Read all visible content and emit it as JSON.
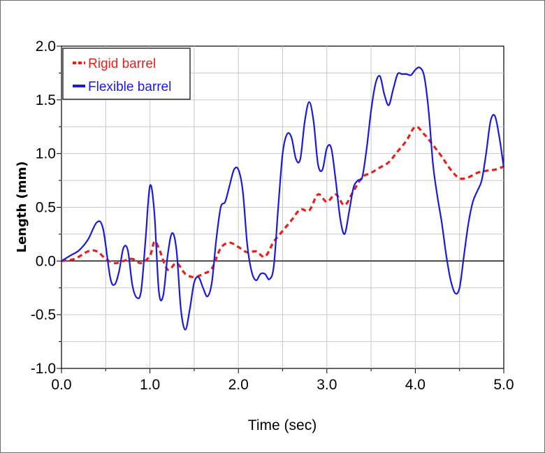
{
  "chart_data": {
    "type": "line",
    "xlabel": "Time (sec)",
    "ylabel": "Length (mm)",
    "xlim": [
      0.0,
      5.0
    ],
    "ylim": [
      -1.0,
      2.0
    ],
    "x_ticks": [
      "0.0",
      "1.0",
      "2.0",
      "3.0",
      "4.0",
      "5.0"
    ],
    "y_ticks": [
      "2.0",
      "1.5",
      "1.0",
      "0.5",
      "0.0",
      "-0.5",
      "-1.0"
    ],
    "grid": true,
    "legend_position": "top-left",
    "series": [
      {
        "name": "Rigid barrel",
        "color": "#e8201c",
        "style": "dashed",
        "points": [
          [
            0.0,
            0.0
          ],
          [
            0.15,
            0.02
          ],
          [
            0.3,
            0.09
          ],
          [
            0.4,
            0.09
          ],
          [
            0.5,
            0.02
          ],
          [
            0.6,
            -0.02
          ],
          [
            0.7,
            0.0
          ],
          [
            0.8,
            0.02
          ],
          [
            0.9,
            -0.02
          ],
          [
            1.0,
            0.05
          ],
          [
            1.05,
            0.18
          ],
          [
            1.1,
            0.12
          ],
          [
            1.2,
            -0.08
          ],
          [
            1.3,
            -0.02
          ],
          [
            1.4,
            -0.12
          ],
          [
            1.5,
            -0.15
          ],
          [
            1.6,
            -0.12
          ],
          [
            1.7,
            -0.07
          ],
          [
            1.8,
            0.12
          ],
          [
            1.9,
            0.17
          ],
          [
            2.0,
            0.13
          ],
          [
            2.1,
            0.08
          ],
          [
            2.2,
            0.09
          ],
          [
            2.3,
            0.04
          ],
          [
            2.4,
            0.18
          ],
          [
            2.5,
            0.28
          ],
          [
            2.6,
            0.38
          ],
          [
            2.7,
            0.48
          ],
          [
            2.8,
            0.47
          ],
          [
            2.9,
            0.62
          ],
          [
            3.0,
            0.55
          ],
          [
            3.1,
            0.62
          ],
          [
            3.2,
            0.52
          ],
          [
            3.3,
            0.65
          ],
          [
            3.4,
            0.78
          ],
          [
            3.5,
            0.82
          ],
          [
            3.6,
            0.87
          ],
          [
            3.7,
            0.92
          ],
          [
            3.8,
            1.02
          ],
          [
            3.9,
            1.12
          ],
          [
            4.0,
            1.25
          ],
          [
            4.1,
            1.18
          ],
          [
            4.2,
            1.08
          ],
          [
            4.3,
            0.97
          ],
          [
            4.4,
            0.85
          ],
          [
            4.5,
            0.77
          ],
          [
            4.6,
            0.78
          ],
          [
            4.7,
            0.82
          ],
          [
            4.8,
            0.84
          ],
          [
            4.9,
            0.85
          ],
          [
            5.0,
            0.88
          ]
        ]
      },
      {
        "name": "Flexible barrel",
        "color": "#1a1adc",
        "style": "solid",
        "points": [
          [
            0.0,
            0.0
          ],
          [
            0.1,
            0.05
          ],
          [
            0.2,
            0.1
          ],
          [
            0.3,
            0.2
          ],
          [
            0.4,
            0.36
          ],
          [
            0.47,
            0.3
          ],
          [
            0.55,
            -0.15
          ],
          [
            0.6,
            -0.22
          ],
          [
            0.65,
            -0.1
          ],
          [
            0.7,
            0.12
          ],
          [
            0.75,
            0.1
          ],
          [
            0.8,
            -0.22
          ],
          [
            0.85,
            -0.34
          ],
          [
            0.9,
            -0.28
          ],
          [
            0.95,
            0.2
          ],
          [
            1.0,
            0.7
          ],
          [
            1.05,
            0.45
          ],
          [
            1.1,
            -0.28
          ],
          [
            1.15,
            -0.32
          ],
          [
            1.2,
            0.05
          ],
          [
            1.25,
            0.26
          ],
          [
            1.3,
            0.1
          ],
          [
            1.35,
            -0.45
          ],
          [
            1.4,
            -0.64
          ],
          [
            1.45,
            -0.45
          ],
          [
            1.5,
            -0.2
          ],
          [
            1.55,
            -0.15
          ],
          [
            1.6,
            -0.25
          ],
          [
            1.65,
            -0.33
          ],
          [
            1.7,
            -0.2
          ],
          [
            1.75,
            0.2
          ],
          [
            1.8,
            0.5
          ],
          [
            1.85,
            0.55
          ],
          [
            1.9,
            0.7
          ],
          [
            1.95,
            0.85
          ],
          [
            2.0,
            0.85
          ],
          [
            2.05,
            0.65
          ],
          [
            2.1,
            0.15
          ],
          [
            2.15,
            -0.1
          ],
          [
            2.2,
            -0.18
          ],
          [
            2.25,
            -0.12
          ],
          [
            2.3,
            -0.12
          ],
          [
            2.35,
            -0.17
          ],
          [
            2.4,
            -0.05
          ],
          [
            2.45,
            0.5
          ],
          [
            2.5,
            1.0
          ],
          [
            2.55,
            1.18
          ],
          [
            2.6,
            1.15
          ],
          [
            2.65,
            0.95
          ],
          [
            2.7,
            0.95
          ],
          [
            2.75,
            1.3
          ],
          [
            2.8,
            1.48
          ],
          [
            2.85,
            1.3
          ],
          [
            2.9,
            0.9
          ],
          [
            2.95,
            0.85
          ],
          [
            3.0,
            1.05
          ],
          [
            3.05,
            1.05
          ],
          [
            3.1,
            0.75
          ],
          [
            3.15,
            0.4
          ],
          [
            3.2,
            0.25
          ],
          [
            3.25,
            0.45
          ],
          [
            3.3,
            0.68
          ],
          [
            3.35,
            0.75
          ],
          [
            3.4,
            0.78
          ],
          [
            3.45,
            1.05
          ],
          [
            3.5,
            1.4
          ],
          [
            3.55,
            1.65
          ],
          [
            3.6,
            1.72
          ],
          [
            3.65,
            1.55
          ],
          [
            3.7,
            1.45
          ],
          [
            3.75,
            1.6
          ],
          [
            3.8,
            1.74
          ],
          [
            3.85,
            1.74
          ],
          [
            3.9,
            1.74
          ],
          [
            3.95,
            1.73
          ],
          [
            4.0,
            1.78
          ],
          [
            4.05,
            1.8
          ],
          [
            4.1,
            1.72
          ],
          [
            4.15,
            1.4
          ],
          [
            4.2,
            0.9
          ],
          [
            4.25,
            0.6
          ],
          [
            4.3,
            0.35
          ],
          [
            4.35,
            0.05
          ],
          [
            4.4,
            -0.18
          ],
          [
            4.45,
            -0.3
          ],
          [
            4.5,
            -0.25
          ],
          [
            4.55,
            0.05
          ],
          [
            4.6,
            0.35
          ],
          [
            4.65,
            0.55
          ],
          [
            4.7,
            0.65
          ],
          [
            4.75,
            0.75
          ],
          [
            4.8,
            1.0
          ],
          [
            4.85,
            1.3
          ],
          [
            4.9,
            1.35
          ],
          [
            4.95,
            1.15
          ],
          [
            5.0,
            0.87
          ]
        ]
      }
    ]
  }
}
